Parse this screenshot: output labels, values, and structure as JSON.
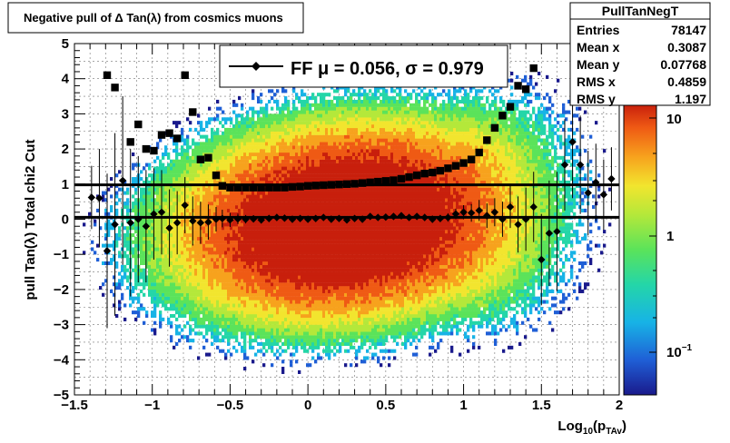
{
  "title_box": {
    "text": "Negative pull of Δ Tan(λ) from cosmics muons"
  },
  "stats_box": {
    "name": "PullTanNegT",
    "rows": [
      {
        "label": "Entries",
        "value": "78147"
      },
      {
        "label": "Mean x",
        "value": "0.3087"
      },
      {
        "label": "Mean y",
        "value": "0.07768"
      },
      {
        "label": "RMS x",
        "value": "0.4859"
      },
      {
        "label": "RMS y",
        "value": "1.197"
      }
    ]
  },
  "legend": {
    "text": "FF μ =  0.056, σ =   0.979"
  },
  "colors": {
    "frame": "#000000",
    "marker": "#000000",
    "palette": [
      "#1a1a8c",
      "#1f5fd6",
      "#17b3e6",
      "#24d6a8",
      "#5be35a",
      "#b4e83a",
      "#f2e52e",
      "#f7a21d",
      "#ef5a14",
      "#c81f0c"
    ]
  },
  "chart_data": {
    "type": "heatmap",
    "xlabel": "Log10(pTAv)",
    "ylabel": "pull Tan(λ)  Total chi2 Cut",
    "xlim": [
      -1.5,
      2
    ],
    "ylim": [
      -5,
      5
    ],
    "x_ticks": [
      "−1.5",
      "−1",
      "−0.5",
      "0",
      "0.5",
      "1",
      "1.5",
      "2"
    ],
    "y_ticks": [
      "5",
      "4",
      "3",
      "2",
      "1",
      "0",
      "−1",
      "−2",
      "−3",
      "−4",
      "−5"
    ],
    "z_scale": "log",
    "z_ticks": [
      "10",
      "1",
      "10−1"
    ],
    "grid": true,
    "series": [
      {
        "name": "mean",
        "marker": "circle",
        "points": [
          [
            -1.39,
            0.62,
            0.9
          ],
          [
            -1.34,
            0.6,
            1.4
          ],
          [
            -1.29,
            -0.9,
            2.2
          ],
          [
            -1.24,
            -0.15,
            2.6
          ],
          [
            -1.19,
            1.1,
            2.4
          ],
          [
            -1.14,
            -0.1,
            2.1
          ],
          [
            -1.09,
            0.0,
            1.8
          ],
          [
            -1.04,
            -0.2,
            1.6
          ],
          [
            -0.99,
            0.15,
            1.3
          ],
          [
            -0.94,
            0.2,
            1.2
          ],
          [
            -0.89,
            -0.25,
            1.1
          ],
          [
            -0.84,
            -0.1,
            0.9
          ],
          [
            -0.79,
            0.4,
            0.8
          ],
          [
            -0.74,
            -0.05,
            0.7
          ],
          [
            -0.69,
            -0.1,
            0.6
          ],
          [
            -0.64,
            -0.08,
            0.5
          ],
          [
            -0.59,
            0.0,
            0.35
          ],
          [
            -0.55,
            0.02,
            0.25
          ],
          [
            -0.5,
            -0.02,
            0.2
          ],
          [
            -0.45,
            0.01,
            0.15
          ],
          [
            -0.4,
            0.0,
            0.12
          ],
          [
            -0.35,
            0.01,
            0.1
          ],
          [
            -0.3,
            -0.02,
            0.1
          ],
          [
            -0.25,
            0.02,
            0.1
          ],
          [
            -0.2,
            0.05,
            0.1
          ],
          [
            -0.15,
            0.03,
            0.08
          ],
          [
            -0.1,
            0.0,
            0.08
          ],
          [
            -0.05,
            0.02,
            0.08
          ],
          [
            0.0,
            0.0,
            0.08
          ],
          [
            0.05,
            0.02,
            0.08
          ],
          [
            0.1,
            0.05,
            0.08
          ],
          [
            0.15,
            0.0,
            0.08
          ],
          [
            0.2,
            0.02,
            0.08
          ],
          [
            0.25,
            -0.02,
            0.08
          ],
          [
            0.3,
            0.02,
            0.08
          ],
          [
            0.35,
            0.0,
            0.08
          ],
          [
            0.4,
            0.08,
            0.08
          ],
          [
            0.45,
            0.05,
            0.08
          ],
          [
            0.5,
            0.06,
            0.08
          ],
          [
            0.55,
            0.08,
            0.08
          ],
          [
            0.6,
            0.1,
            0.08
          ],
          [
            0.65,
            0.05,
            0.08
          ],
          [
            0.7,
            0.08,
            0.08
          ],
          [
            0.75,
            0.05,
            0.1
          ],
          [
            0.8,
            0.0,
            0.1
          ],
          [
            0.85,
            0.02,
            0.1
          ],
          [
            0.9,
            0.05,
            0.12
          ],
          [
            0.95,
            0.15,
            0.15
          ],
          [
            1.0,
            0.2,
            0.2
          ],
          [
            1.05,
            0.18,
            0.25
          ],
          [
            1.1,
            0.25,
            0.3
          ],
          [
            1.15,
            0.1,
            0.35
          ],
          [
            1.2,
            0.2,
            0.4
          ],
          [
            1.25,
            0.0,
            0.5
          ],
          [
            1.3,
            0.35,
            0.6
          ],
          [
            1.35,
            -0.15,
            0.8
          ],
          [
            1.4,
            0.0,
            0.9
          ],
          [
            1.45,
            0.35,
            1.0
          ],
          [
            1.5,
            -1.15,
            1.3
          ],
          [
            1.55,
            -0.4,
            1.5
          ],
          [
            1.6,
            -0.35,
            1.7
          ],
          [
            1.65,
            1.55,
            1.3
          ],
          [
            1.7,
            2.2,
            1.6
          ],
          [
            1.75,
            1.55,
            1.4
          ],
          [
            1.8,
            0.75,
            1.2
          ],
          [
            1.85,
            1.05,
            1.1
          ],
          [
            1.9,
            0.7,
            1.0
          ],
          [
            1.95,
            1.15,
            0.9
          ]
        ]
      },
      {
        "name": "rms",
        "marker": "square",
        "points": [
          [
            -1.29,
            4.1
          ],
          [
            -1.24,
            3.75
          ],
          [
            -1.14,
            2.2
          ],
          [
            -1.09,
            2.7
          ],
          [
            -1.04,
            2.0
          ],
          [
            -0.99,
            1.95
          ],
          [
            -0.94,
            2.4
          ],
          [
            -0.89,
            2.45
          ],
          [
            -0.84,
            2.3
          ],
          [
            -0.79,
            4.1
          ],
          [
            -0.74,
            3.05
          ],
          [
            -0.69,
            1.7
          ],
          [
            -0.64,
            1.75
          ],
          [
            -0.59,
            1.25
          ],
          [
            -0.55,
            0.95
          ],
          [
            -0.5,
            0.9
          ],
          [
            -0.45,
            0.9
          ],
          [
            -0.4,
            0.9
          ],
          [
            -0.35,
            0.9
          ],
          [
            -0.3,
            0.9
          ],
          [
            -0.25,
            0.9
          ],
          [
            -0.2,
            0.9
          ],
          [
            -0.15,
            0.9
          ],
          [
            -0.1,
            0.92
          ],
          [
            -0.05,
            0.93
          ],
          [
            0.0,
            0.95
          ],
          [
            0.05,
            0.96
          ],
          [
            0.1,
            0.97
          ],
          [
            0.15,
            0.98
          ],
          [
            0.2,
            0.99
          ],
          [
            0.25,
            1.0
          ],
          [
            0.3,
            1.01
          ],
          [
            0.35,
            1.03
          ],
          [
            0.4,
            1.05
          ],
          [
            0.45,
            1.07
          ],
          [
            0.5,
            1.09
          ],
          [
            0.55,
            1.11
          ],
          [
            0.6,
            1.15
          ],
          [
            0.65,
            1.2
          ],
          [
            0.7,
            1.25
          ],
          [
            0.75,
            1.3
          ],
          [
            0.8,
            1.33
          ],
          [
            0.85,
            1.38
          ],
          [
            0.9,
            1.45
          ],
          [
            0.95,
            1.52
          ],
          [
            1.0,
            1.6
          ],
          [
            1.05,
            1.7
          ],
          [
            1.1,
            1.9
          ],
          [
            1.15,
            2.25
          ],
          [
            1.2,
            2.6
          ],
          [
            1.25,
            2.95
          ],
          [
            1.3,
            3.2
          ],
          [
            1.35,
            3.8
          ],
          [
            1.4,
            3.7
          ],
          [
            1.45,
            4.3
          ]
        ]
      }
    ]
  }
}
